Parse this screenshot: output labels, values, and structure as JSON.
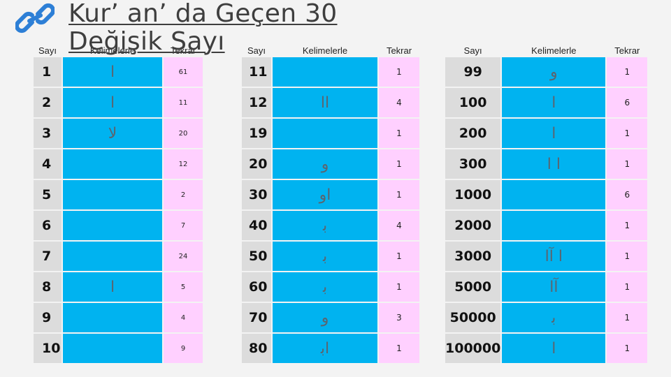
{
  "title": {
    "line1": "Kur’ an’ da Geçen 30",
    "line2": "Değişik Sayı"
  },
  "icons": {
    "link": "link-icon"
  },
  "colors": {
    "number_cell": "#dcdcdc",
    "word_cell": "#00b3f0",
    "repeat_cell": "#ffd0ff",
    "title": "#3e3e3e"
  },
  "headers": {
    "sayi": "Sayı",
    "kelimelerle": "Kelimelerle",
    "tekrar": "Tekrar"
  },
  "tables": [
    {
      "rows": [
        {
          "sayi": "1",
          "kelime": "ا",
          "tekrar": "61"
        },
        {
          "sayi": "2",
          "kelime": "ا",
          "tekrar": "11"
        },
        {
          "sayi": "3",
          "kelime": "لا",
          "tekrar": "20"
        },
        {
          "sayi": "4",
          "kelime": "",
          "tekrar": "12"
        },
        {
          "sayi": "5",
          "kelime": "",
          "tekrar": "2"
        },
        {
          "sayi": "6",
          "kelime": "",
          "tekrar": "7"
        },
        {
          "sayi": "7",
          "kelime": "",
          "tekrar": "24"
        },
        {
          "sayi": "8",
          "kelime": "ا",
          "tekrar": "5"
        },
        {
          "sayi": "9",
          "kelime": "",
          "tekrar": "4"
        },
        {
          "sayi": "10",
          "kelime": "",
          "tekrar": "9"
        }
      ]
    },
    {
      "rows": [
        {
          "sayi": "11",
          "kelime": "",
          "tekrar": "1"
        },
        {
          "sayi": "12",
          "kelime": "اا",
          "tekrar": "4"
        },
        {
          "sayi": "19",
          "kelime": "",
          "tekrar": "1"
        },
        {
          "sayi": "20",
          "kelime": "و",
          "tekrar": "1"
        },
        {
          "sayi": "30",
          "kelime": "او",
          "tekrar": "1"
        },
        {
          "sayi": "40",
          "kelime": "ﺑ",
          "tekrar": "4"
        },
        {
          "sayi": "50",
          "kelime": "ﺑ",
          "tekrar": "1"
        },
        {
          "sayi": "60",
          "kelime": "ﺑ",
          "tekrar": "1"
        },
        {
          "sayi": "70",
          "kelime": "و",
          "tekrar": "3"
        },
        {
          "sayi": "80",
          "kelime": "اﺑ",
          "tekrar": "1"
        }
      ]
    },
    {
      "rows": [
        {
          "sayi": "99",
          "kelime": "و",
          "tekrar": "1"
        },
        {
          "sayi": "100",
          "kelime": "ا",
          "tekrar": "6"
        },
        {
          "sayi": "200",
          "kelime": "ا",
          "tekrar": "1"
        },
        {
          "sayi": "300",
          "kelime": "ا ا",
          "tekrar": "1"
        },
        {
          "sayi": "1000",
          "kelime": "",
          "tekrar": "6"
        },
        {
          "sayi": "2000",
          "kelime": "",
          "tekrar": "1"
        },
        {
          "sayi": "3000",
          "kelime": "ا آا",
          "tekrar": "1"
        },
        {
          "sayi": "5000",
          "kelime": "آا",
          "tekrar": "1"
        },
        {
          "sayi": "50000",
          "kelime": "ﺑ",
          "tekrar": "1"
        },
        {
          "sayi": "100000",
          "kelime": "ا",
          "tekrar": "1"
        }
      ]
    }
  ]
}
